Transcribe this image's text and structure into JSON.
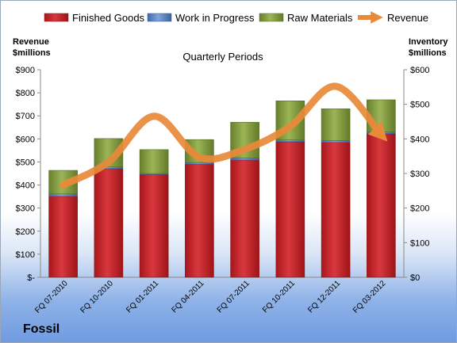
{
  "company": "Fossil",
  "chart_data": {
    "type": "bar",
    "stacked": true,
    "title": "Quarterly Periods",
    "categories": [
      "FQ 07-2010",
      "FQ 10-2010",
      "FQ 01-2011",
      "FQ 04-2011",
      "FQ 07-2011",
      "FQ 10-2011",
      "FQ 12-2011",
      "FQ 03-2012"
    ],
    "series": [
      {
        "name": "Finished Goods",
        "axis": "right",
        "color": "#c0262b",
        "values": [
          234,
          314,
          297,
          327,
          339,
          392,
          390,
          415
        ]
      },
      {
        "name": "Work in Progress",
        "axis": "right",
        "color": "#5b82c0",
        "values": [
          7,
          5,
          3,
          5,
          6,
          5,
          5,
          5
        ]
      },
      {
        "name": "Raw Materials",
        "axis": "right",
        "color": "#7f9a3c",
        "values": [
          68,
          82,
          69,
          66,
          103,
          113,
          92,
          93
        ]
      },
      {
        "name": "Revenue",
        "type": "line",
        "axis": "left",
        "color": "#e9893a",
        "values": [
          400,
          500,
          698,
          520,
          555,
          655,
          828,
          618
        ]
      }
    ],
    "y_left": {
      "label_lines": [
        "Revenue",
        "$millions"
      ],
      "ylim": [
        0,
        900
      ],
      "ticks": [
        0,
        100,
        200,
        300,
        400,
        500,
        600,
        700,
        800,
        900
      ],
      "tick_labels": [
        "$-",
        "$100",
        "$200",
        "$300",
        "$400",
        "$500",
        "$600",
        "$700",
        "$800",
        "$900"
      ]
    },
    "y_right": {
      "label_lines": [
        "Inventory",
        "$millions"
      ],
      "ylim": [
        0,
        600
      ],
      "ticks": [
        0,
        100,
        200,
        300,
        400,
        500,
        600
      ],
      "tick_labels": [
        "$0",
        "$100",
        "$200",
        "$300",
        "$400",
        "$500",
        "$600"
      ]
    },
    "grid": false,
    "legend": "top"
  }
}
